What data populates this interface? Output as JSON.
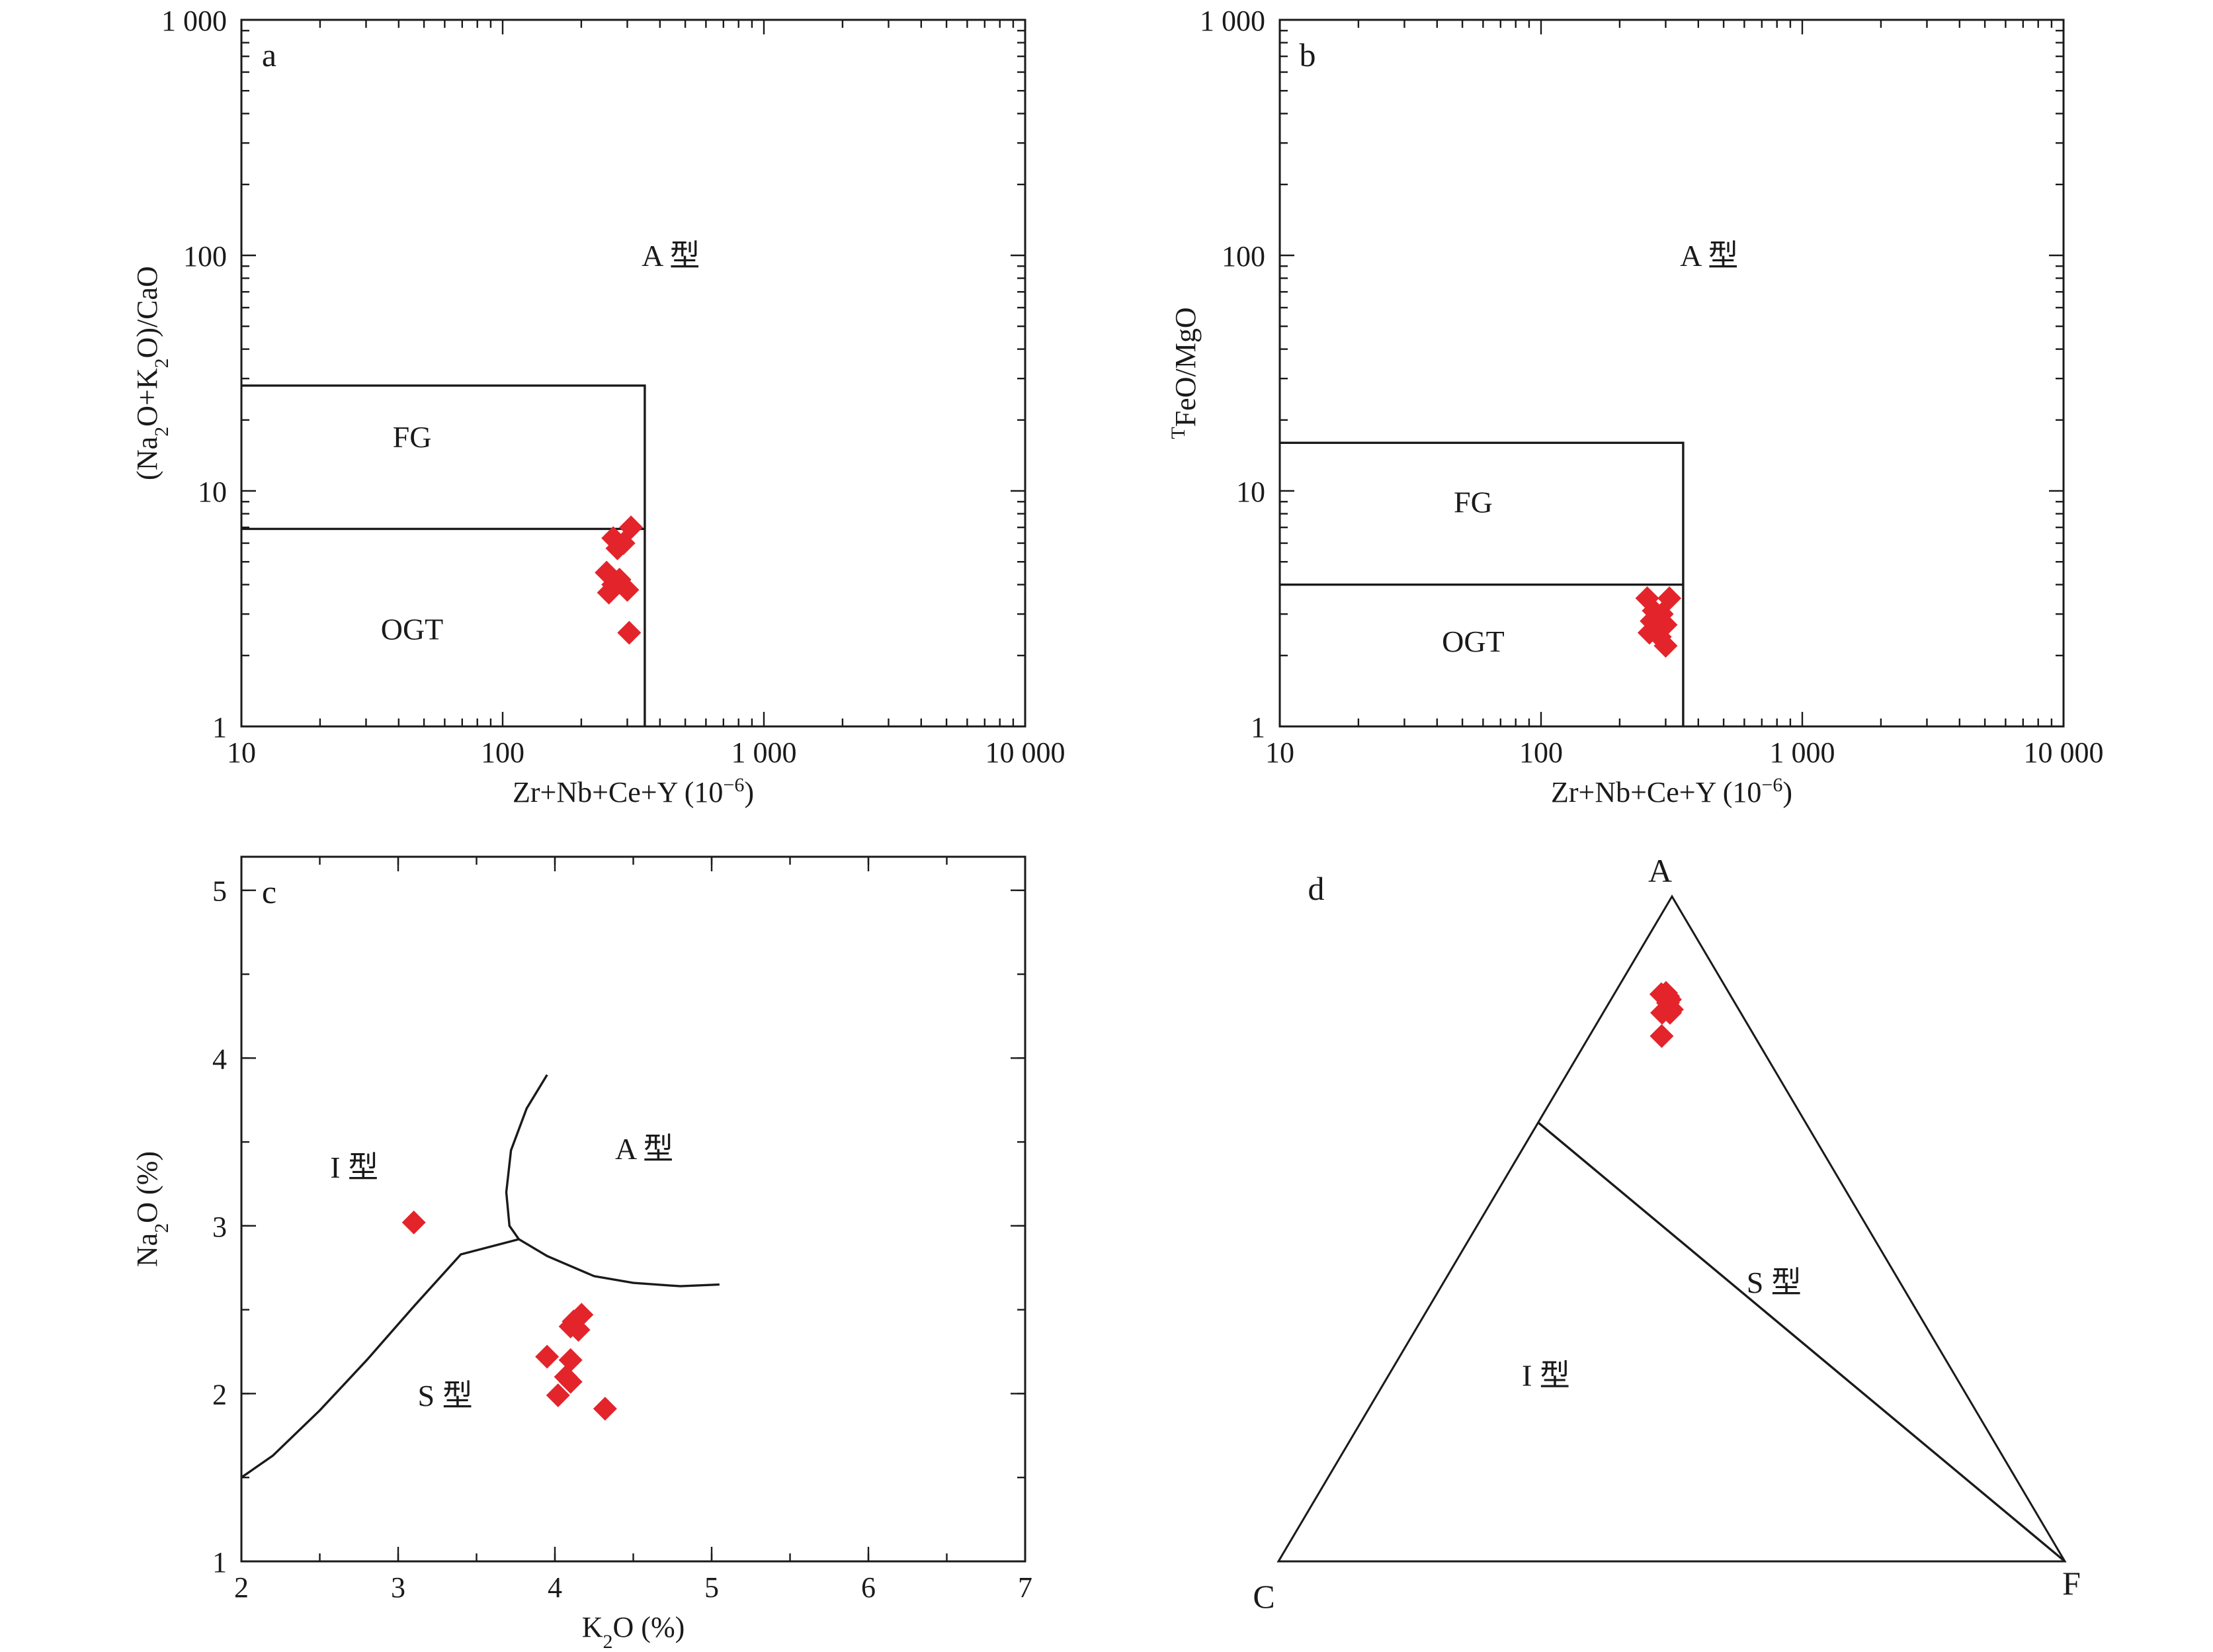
{
  "chart_data": [
    {
      "panel": "a",
      "type": "scatter",
      "xlabel": "Zr+Nb+Ce+Y (10⁻⁶)",
      "ylabel": "(Na₂O+K₂O)/CaO",
      "xscale": "log",
      "yscale": "log",
      "xlim": [
        10,
        10000
      ],
      "ylim": [
        1,
        1000
      ],
      "xticks": [
        "10",
        "100",
        "1 000",
        "10 000"
      ],
      "yticks": [
        "1",
        "10",
        "100",
        "1 000"
      ],
      "xtick_values": [
        10,
        100,
        1000,
        10000
      ],
      "ytick_values": [
        1,
        10,
        100,
        1000
      ],
      "regions": [
        {
          "label": "A 型",
          "x": 440,
          "y": 100
        },
        {
          "label": "FG",
          "x": 45,
          "y": 17
        },
        {
          "label": "OGT",
          "x": 45,
          "y": 2.6
        }
      ],
      "boundaries": [
        {
          "points": [
            [
              10,
              28
            ],
            [
              350,
              28
            ],
            [
              350,
              1
            ]
          ]
        },
        {
          "points": [
            [
              10,
              6.9
            ],
            [
              350,
              6.9
            ]
          ]
        }
      ],
      "points": [
        [
          310,
          7.0
        ],
        [
          265,
          6.3
        ],
        [
          290,
          6.0
        ],
        [
          275,
          5.7
        ],
        [
          250,
          4.5
        ],
        [
          280,
          4.2
        ],
        [
          265,
          4.0
        ],
        [
          300,
          3.8
        ],
        [
          255,
          3.7
        ],
        [
          305,
          2.5
        ]
      ]
    },
    {
      "panel": "b",
      "type": "scatter",
      "xlabel": "Zr+Nb+Ce+Y (10⁻⁶)",
      "ylabel": "ᵀFeO/MgO",
      "xscale": "log",
      "yscale": "log",
      "xlim": [
        10,
        10000
      ],
      "ylim": [
        1,
        1000
      ],
      "xticks": [
        "10",
        "100",
        "1 000",
        "10 000"
      ],
      "yticks": [
        "1",
        "10",
        "100",
        "1 000"
      ],
      "xtick_values": [
        10,
        100,
        1000,
        10000
      ],
      "ytick_values": [
        1,
        10,
        100,
        1000
      ],
      "regions": [
        {
          "label": "A 型",
          "x": 440,
          "y": 100
        },
        {
          "label": "FG",
          "x": 55,
          "y": 9
        },
        {
          "label": "OGT",
          "x": 55,
          "y": 2.3
        }
      ],
      "boundaries": [
        {
          "points": [
            [
              10,
              16
            ],
            [
              350,
              16
            ],
            [
              350,
              1
            ]
          ]
        },
        {
          "points": [
            [
              10,
              4
            ],
            [
              350,
              4
            ]
          ]
        }
      ],
      "points": [
        [
          255,
          3.5
        ],
        [
          310,
          3.5
        ],
        [
          270,
          3.1
        ],
        [
          290,
          3.0
        ],
        [
          265,
          2.8
        ],
        [
          300,
          2.7
        ],
        [
          275,
          2.6
        ],
        [
          260,
          2.5
        ],
        [
          285,
          2.4
        ],
        [
          300,
          2.2
        ]
      ]
    },
    {
      "panel": "c",
      "type": "scatter",
      "xlabel": "K₂O (%)",
      "ylabel": "Na₂O (%)",
      "xlim": [
        2,
        7
      ],
      "ylim": [
        1,
        5.2
      ],
      "xticks": [
        "2",
        "3",
        "4",
        "5",
        "6",
        "7"
      ],
      "yticks": [
        "1",
        "2",
        "3",
        "4",
        "5"
      ],
      "xtick_values": [
        2,
        3,
        4,
        5,
        6,
        7
      ],
      "ytick_values": [
        1,
        2,
        3,
        4,
        5
      ],
      "regions": [
        {
          "label": "I 型",
          "x": 2.72,
          "y": 3.35
        },
        {
          "label": "A 型",
          "x": 4.57,
          "y": 3.46
        },
        {
          "label": "S 型",
          "x": 3.3,
          "y": 1.99
        }
      ],
      "boundaries": [
        {
          "points": [
            [
              2.0,
              1.5
            ],
            [
              2.2,
              1.63
            ],
            [
              2.5,
              1.9
            ],
            [
              2.8,
              2.2
            ],
            [
              3.1,
              2.52
            ],
            [
              3.4,
              2.83
            ],
            [
              3.77,
              2.92
            ]
          ]
        },
        {
          "points": [
            [
              3.77,
              2.92
            ],
            [
              3.71,
              3.0
            ],
            [
              3.69,
              3.2
            ],
            [
              3.72,
              3.45
            ],
            [
              3.82,
              3.7
            ],
            [
              3.95,
              3.9
            ]
          ]
        },
        {
          "points": [
            [
              3.77,
              2.92
            ],
            [
              3.95,
              2.82
            ],
            [
              4.25,
              2.7
            ],
            [
              4.5,
              2.66
            ],
            [
              4.8,
              2.64
            ],
            [
              5.05,
              2.65
            ]
          ]
        }
      ],
      "points": [
        [
          3.1,
          3.02
        ],
        [
          4.17,
          2.47
        ],
        [
          4.12,
          2.43
        ],
        [
          4.1,
          2.4
        ],
        [
          4.15,
          2.38
        ],
        [
          3.95,
          2.22
        ],
        [
          4.1,
          2.2
        ],
        [
          4.07,
          2.1
        ],
        [
          4.1,
          2.07
        ],
        [
          4.02,
          1.99
        ],
        [
          4.32,
          1.91
        ]
      ]
    },
    {
      "panel": "d",
      "type": "scatter",
      "subtype": "ternary",
      "vertices": [
        "A",
        "C",
        "F"
      ],
      "regions": [
        {
          "label": "S 型",
          "a": 0.42,
          "c": 0.16,
          "f": 0.42
        },
        {
          "label": "I 型",
          "a": 0.28,
          "c": 0.52,
          "f": 0.2
        }
      ],
      "boundaries": [
        {
          "from": {
            "a": 0.66,
            "c": 0.34,
            "f": 0.0
          },
          "to": {
            "a": 0.0,
            "c": 0.0,
            "f": 1.0
          }
        }
      ],
      "points": [
        [
          0.853,
          0.087,
          0.06
        ],
        [
          0.855,
          0.08,
          0.065
        ],
        [
          0.85,
          0.08,
          0.07
        ],
        [
          0.847,
          0.081,
          0.072
        ],
        [
          0.845,
          0.08,
          0.075
        ],
        [
          0.84,
          0.085,
          0.075
        ],
        [
          0.825,
          0.1,
          0.075
        ],
        [
          0.83,
          0.085,
          0.085
        ],
        [
          0.825,
          0.09,
          0.085
        ],
        [
          0.79,
          0.118,
          0.092
        ]
      ],
      "points_order": "a, c, f"
    }
  ],
  "panels": {
    "a": {
      "label": "a"
    },
    "b": {
      "label": "b"
    },
    "c": {
      "label": "c"
    },
    "d": {
      "label": "d",
      "vertex_a": "A",
      "vertex_c": "C",
      "vertex_f": "F"
    }
  },
  "colors": {
    "marker": "#e3242b",
    "line": "#1a1a1a"
  }
}
